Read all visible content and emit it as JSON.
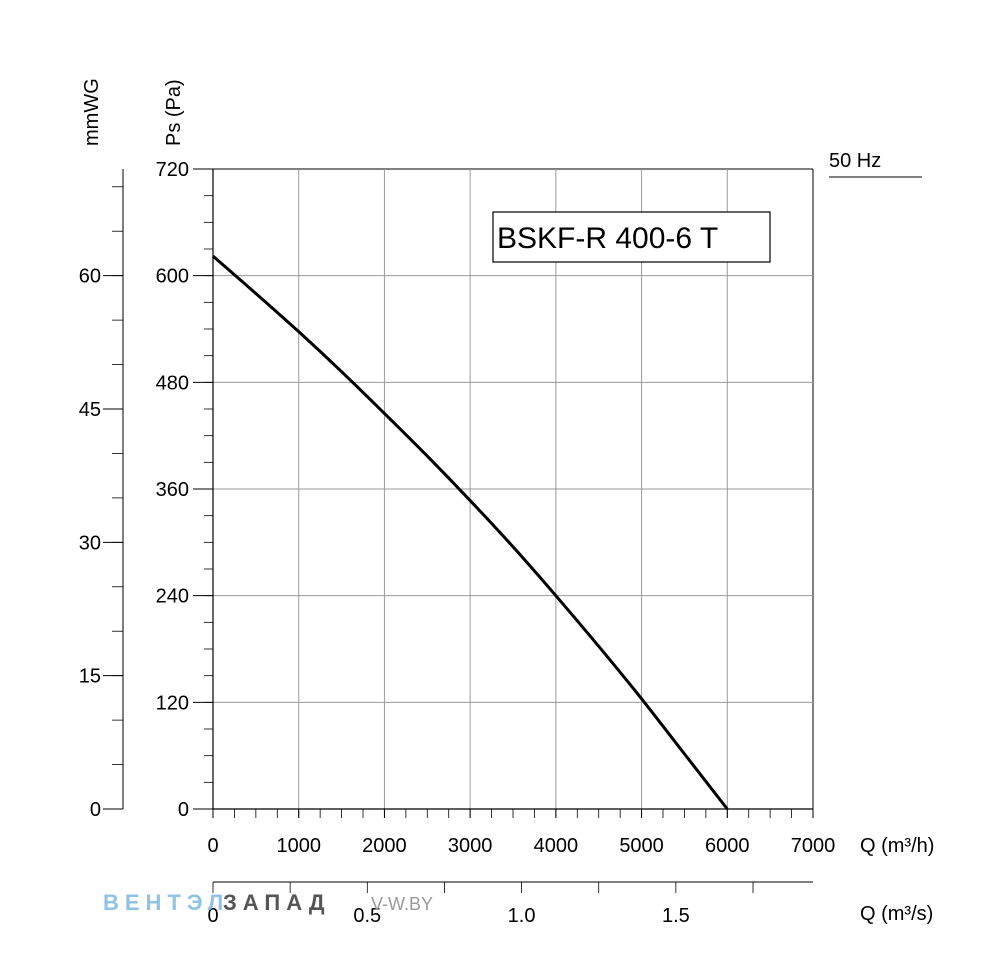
{
  "chart_data": {
    "type": "line",
    "title": "BSKF-R 400-6 T",
    "frequency_label": "50 Hz",
    "xlabel": "Q (m³/h)",
    "x2label": "Q (m³/s)",
    "ylabel": "Ps (Pa)",
    "y2label": "mmWG",
    "xlim": [
      0,
      7000
    ],
    "ylim": [
      0,
      720
    ],
    "x2lim": [
      0,
      1.9444
    ],
    "y2lim": [
      0,
      72
    ],
    "x_ticks": [
      "0",
      "1000",
      "2000",
      "3000",
      "4000",
      "5000",
      "6000",
      "7000"
    ],
    "y_ticks": [
      "0",
      "120",
      "240",
      "360",
      "480",
      "600",
      "720"
    ],
    "x2_ticks": [
      "0",
      "0.5",
      "1.0",
      "1.5"
    ],
    "y2_ticks": [
      "0",
      "15",
      "30",
      "45",
      "60"
    ],
    "grid": true,
    "series": [
      {
        "x": [
          0,
          500,
          1000,
          1500,
          2000,
          2500,
          3000,
          3500,
          4000,
          4500,
          5000,
          5500,
          6000
        ],
        "y": [
          622,
          580,
          537,
          492,
          445,
          397,
          347,
          295,
          240,
          183,
          124,
          62,
          0
        ]
      }
    ]
  },
  "watermark": {
    "brand_part1": "ВЕНТЭЛ",
    "brand_part2": "ЗАПАД",
    "site": "V-W.BY"
  }
}
